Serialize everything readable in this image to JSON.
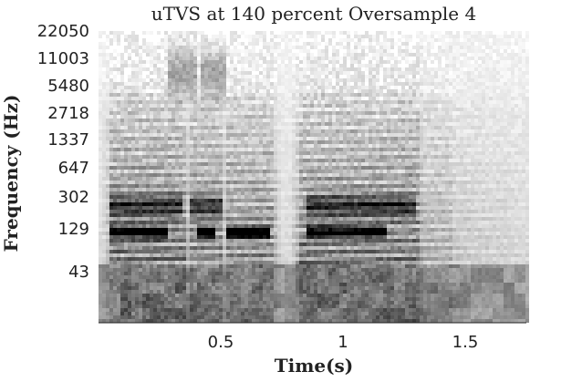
{
  "chart_data": {
    "type": "heatmap",
    "title": "uTVS at 140 percent Oversample 4",
    "xlabel": "Time(s)",
    "ylabel": "Frequency (Hz)",
    "xlim": [
      0.0,
      1.75
    ],
    "x_ticks": [
      {
        "value": 0.5,
        "label": "0.5"
      },
      {
        "value": 1.0,
        "label": "1"
      },
      {
        "value": 1.5,
        "label": "1.5"
      }
    ],
    "y_scale": "log-spaced frequency bins",
    "y_ticks": [
      "22050",
      "11003",
      "5480",
      "2718",
      "1337",
      "647",
      "302",
      "129",
      "43"
    ],
    "colormap": "grayscale (white = low energy, black = high energy)",
    "background": "#ffffff",
    "dark_energy_bands": [
      {
        "label": "129 Hz band",
        "segments": [
          [
            0.05,
            0.28
          ],
          [
            0.4,
            0.48
          ],
          [
            0.52,
            0.7
          ],
          [
            0.85,
            1.18
          ]
        ]
      },
      {
        "label": "302 Hz harmonics",
        "segments": [
          [
            0.05,
            0.35
          ],
          [
            0.38,
            0.5
          ],
          [
            0.85,
            1.3
          ]
        ]
      },
      {
        "label": "upper formants 5480-11003 Hz",
        "segments": [
          [
            0.28,
            0.4
          ],
          [
            0.42,
            0.52
          ]
        ]
      }
    ]
  }
}
